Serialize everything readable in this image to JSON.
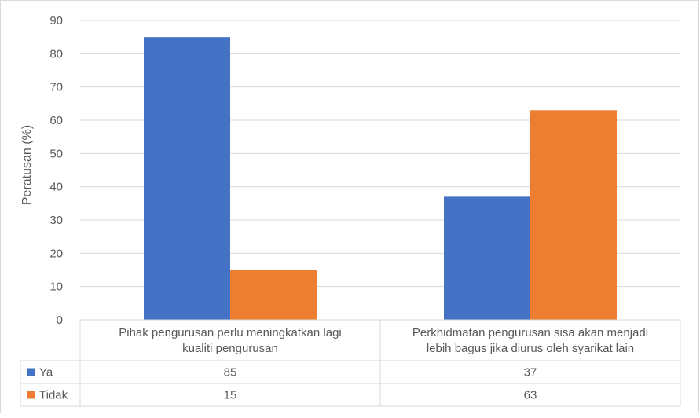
{
  "chart_data": {
    "type": "bar",
    "ylabel": "Peratusan (%)",
    "ylim": [
      0,
      90
    ],
    "yticks": [
      0,
      10,
      20,
      30,
      40,
      50,
      60,
      70,
      80,
      90
    ],
    "grid": true,
    "legend": "data-table",
    "categories": [
      [
        "Pihak pengurusan perlu meningkatkan lagi",
        "kualiti pengurusan"
      ],
      [
        "Perkhidmatan pengurusan sisa akan menjadi",
        "lebih bagus jika diurus oleh syarikat lain"
      ]
    ],
    "series": [
      {
        "name": "Ya",
        "color": "#4472C4",
        "values": [
          85,
          37
        ]
      },
      {
        "name": "Tidak",
        "color": "#ED7D31",
        "values": [
          15,
          63
        ]
      }
    ]
  }
}
